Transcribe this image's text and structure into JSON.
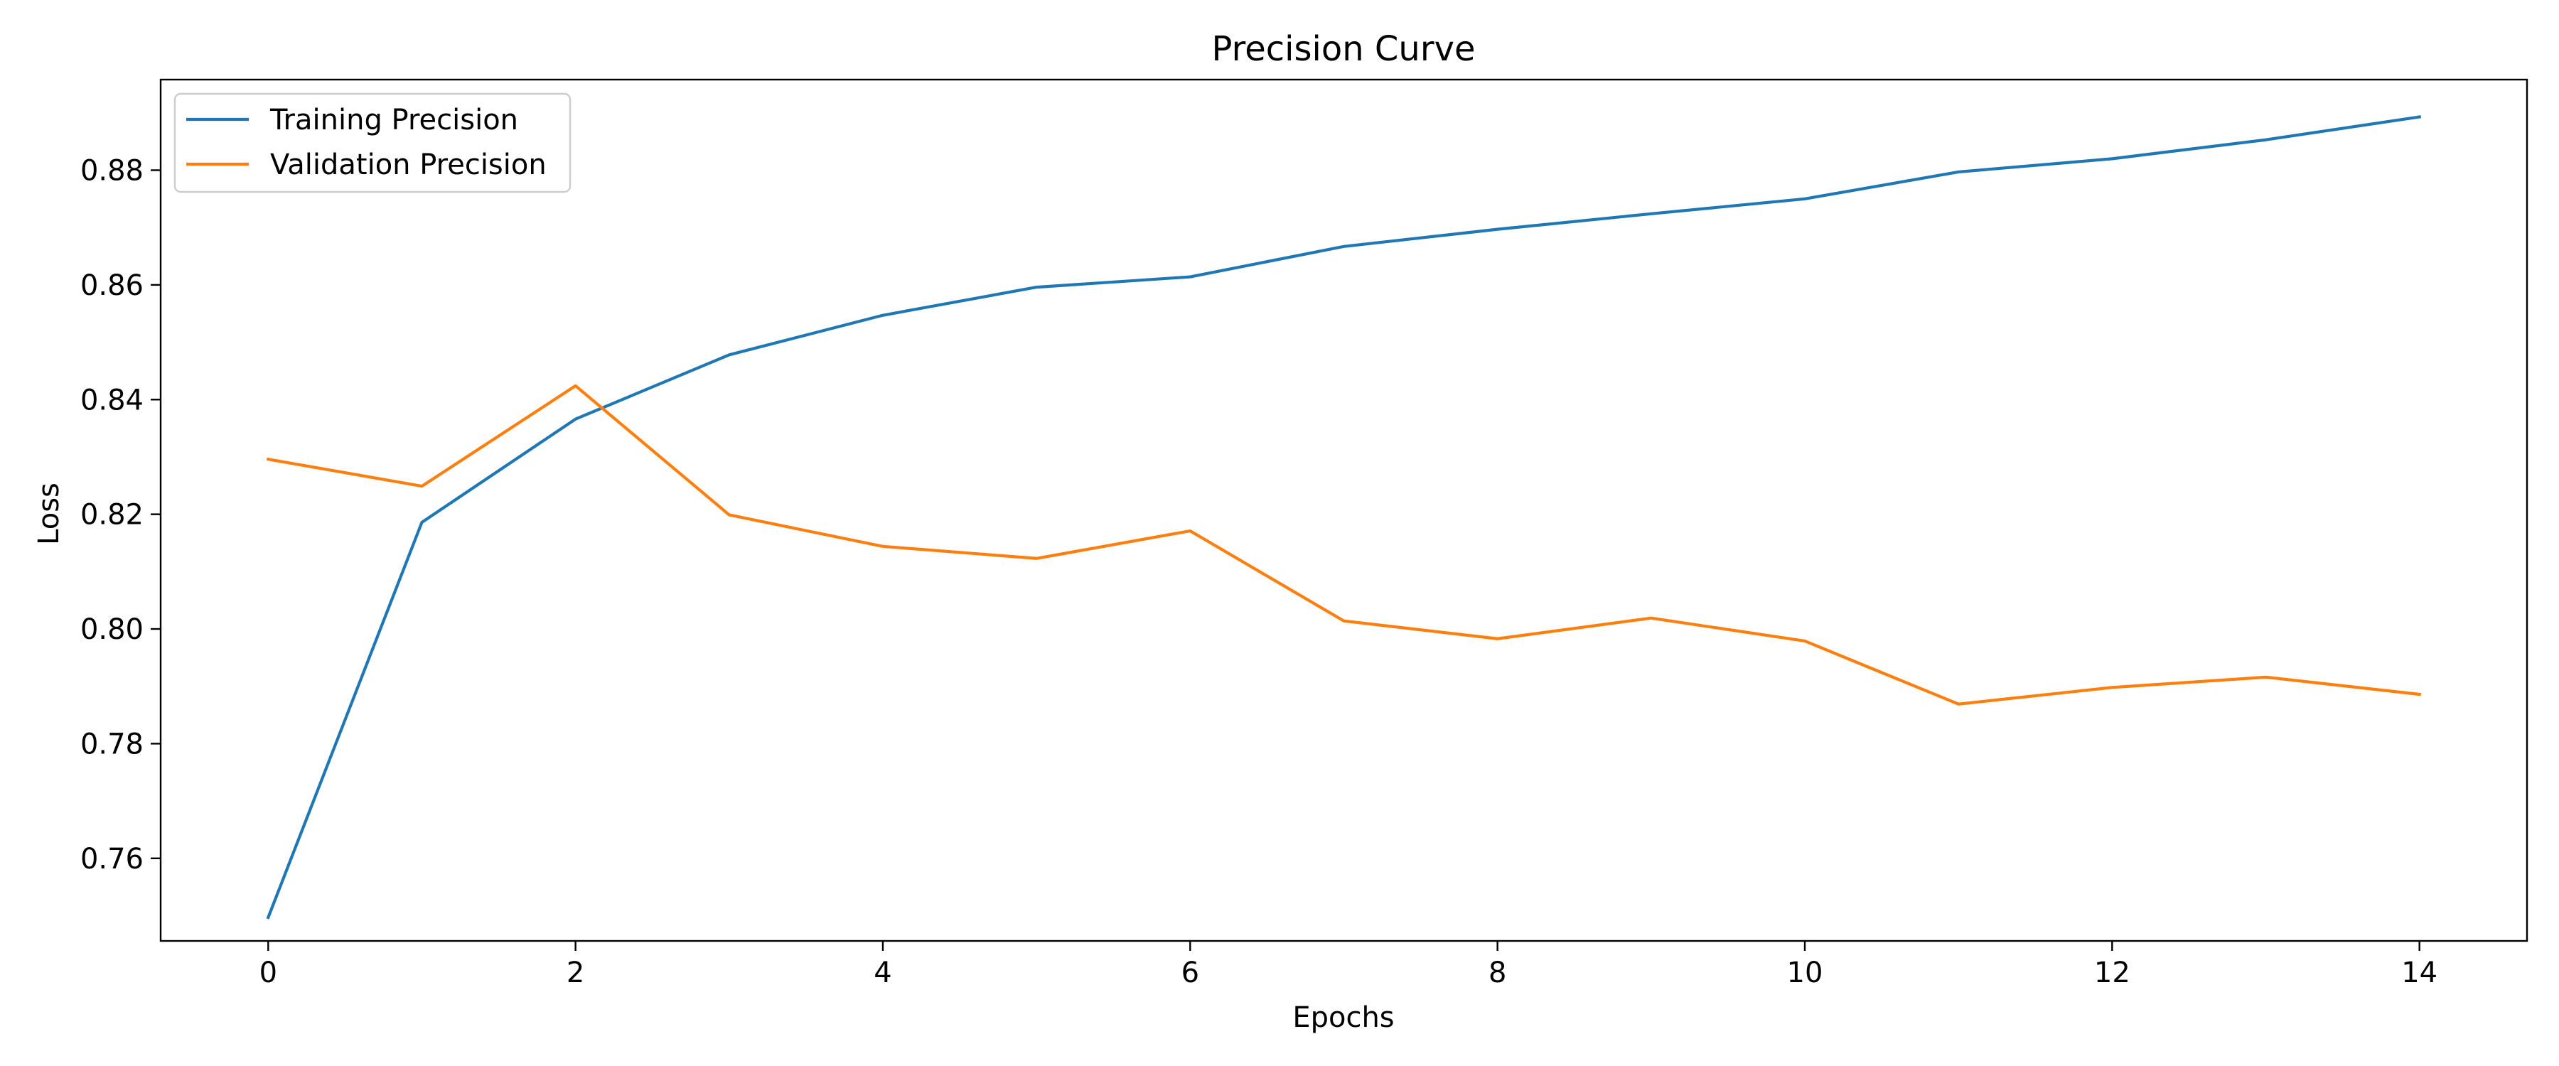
{
  "chart_data": {
    "type": "line",
    "title": "Precision Curve",
    "xlabel": "Epochs",
    "ylabel": "Loss",
    "x": [
      0,
      1,
      2,
      3,
      4,
      5,
      6,
      7,
      8,
      9,
      10,
      11,
      12,
      13,
      14
    ],
    "xlim": [
      -0.7,
      14.7
    ],
    "ylim": [
      0.7456,
      0.8958
    ],
    "xticks": [
      0,
      2,
      4,
      6,
      8,
      10,
      12,
      14
    ],
    "yticks": [
      0.76,
      0.78,
      0.8,
      0.82,
      0.84,
      0.86,
      0.88
    ],
    "xtick_labels": [
      "0",
      "2",
      "4",
      "6",
      "8",
      "10",
      "12",
      "14"
    ],
    "ytick_labels": [
      "0.76",
      "0.78",
      "0.80",
      "0.82",
      "0.84",
      "0.86",
      "0.88"
    ],
    "grid": false,
    "legend_position": "top-left",
    "series": [
      {
        "name": "Training Precision",
        "color": "#1f77b4",
        "values": [
          0.7497,
          0.8186,
          0.8366,
          0.8478,
          0.8547,
          0.8596,
          0.8614,
          0.8667,
          0.8697,
          0.8724,
          0.875,
          0.8797,
          0.882,
          0.8853,
          0.8893
        ]
      },
      {
        "name": "Validation Precision",
        "color": "#ff7f0e",
        "values": [
          0.8296,
          0.8249,
          0.8424,
          0.8199,
          0.8144,
          0.8123,
          0.8171,
          0.8014,
          0.7983,
          0.8019,
          0.7979,
          0.7869,
          0.7898,
          0.7916,
          0.7886
        ]
      }
    ]
  }
}
